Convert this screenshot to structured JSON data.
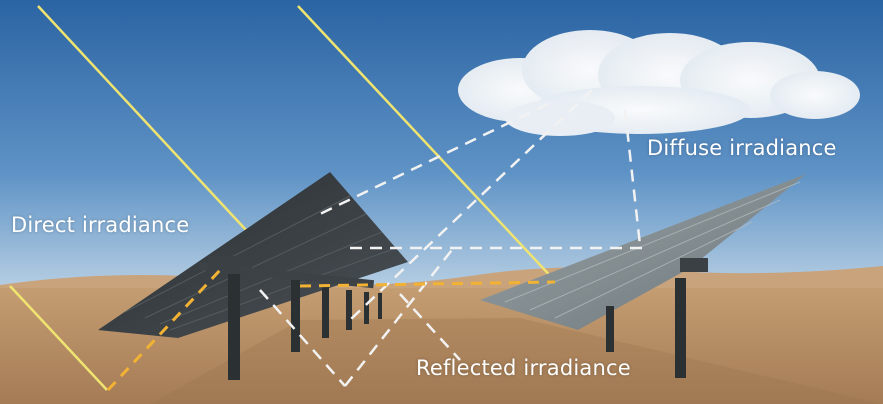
{
  "labels": {
    "direct": "Direct irradiance",
    "diffuse": "Diffuse irradiance",
    "reflected": "Reflected irradiance"
  },
  "colors": {
    "sky_top": "#2e6aa8",
    "sky_bottom": "#a9c8e3",
    "sand": "#b48a62",
    "direct_ray": "#f0e470",
    "reflected_ray": "#f2b233",
    "diffuse_ray": "#f2f2f2",
    "panel_dark": "#2f3438",
    "panel_light": "#8f989c"
  }
}
